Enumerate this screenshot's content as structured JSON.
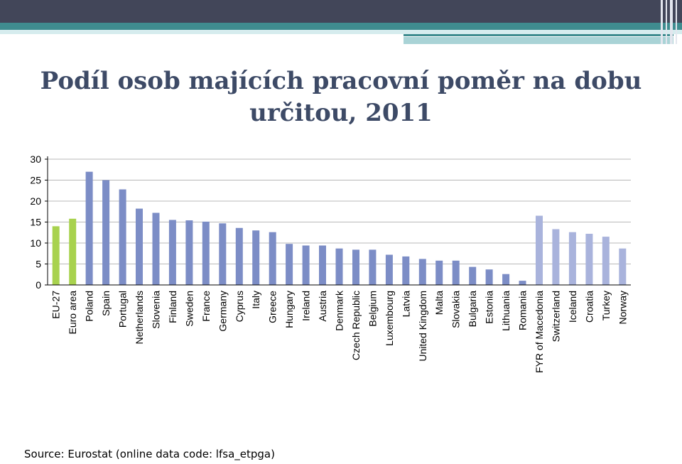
{
  "slide": {
    "title_line1": "Podíl osob majících pracovní poměr na dobu",
    "title_line2": "určitou, 2011",
    "source": "Source: Eurostat (online data code: lfsa_etpga)"
  },
  "colors": {
    "header_dark": "#424659",
    "header_accent": "#3f8c8f",
    "header_light": "#a9d3d6",
    "title": "#3d4a66",
    "bar_eu": "#a8d24e",
    "bar_member": "#7c8dc6",
    "bar_other": "#a9b3dc",
    "grid": "#b8b8b8"
  },
  "chart_data": {
    "type": "bar",
    "title": "",
    "xlabel": "",
    "ylabel": "",
    "ylim": [
      0,
      30
    ],
    "yticks": [
      0,
      5,
      10,
      15,
      20,
      25,
      30
    ],
    "grid": true,
    "legend": "none",
    "categories": [
      "EU-27",
      "Euro area",
      "Poland",
      "Spain",
      "Portugal",
      "Netherlands",
      "Slovenia",
      "Finland",
      "Sweden",
      "France",
      "Germany",
      "Cyprus",
      "Italy",
      "Greece",
      "Hungary",
      "Ireland",
      "Austria",
      "Denmark",
      "Czech Republic",
      "Belgium",
      "Luxembourg",
      "Latvia",
      "United Kingdom",
      "Malta",
      "Slovakia",
      "Bulgaria",
      "Estonia",
      "Lithuania",
      "Romania",
      "FYR of Macedonia",
      "Switzerland",
      "Iceland",
      "Croatia",
      "Turkey",
      "Norway"
    ],
    "values": [
      14.0,
      15.8,
      27.0,
      25.0,
      22.8,
      18.2,
      17.2,
      15.5,
      15.4,
      15.1,
      14.7,
      13.6,
      13.0,
      12.6,
      9.8,
      9.4,
      9.4,
      8.7,
      8.4,
      8.4,
      7.2,
      6.8,
      6.2,
      5.8,
      5.8,
      4.3,
      3.7,
      2.6,
      1.0,
      16.5,
      13.3,
      12.6,
      12.2,
      11.5,
      8.7
    ],
    "groups": [
      "eu",
      "eu",
      "member",
      "member",
      "member",
      "member",
      "member",
      "member",
      "member",
      "member",
      "member",
      "member",
      "member",
      "member",
      "member",
      "member",
      "member",
      "member",
      "member",
      "member",
      "member",
      "member",
      "member",
      "member",
      "member",
      "member",
      "member",
      "member",
      "member",
      "other",
      "other",
      "other",
      "other",
      "other",
      "other"
    ]
  }
}
